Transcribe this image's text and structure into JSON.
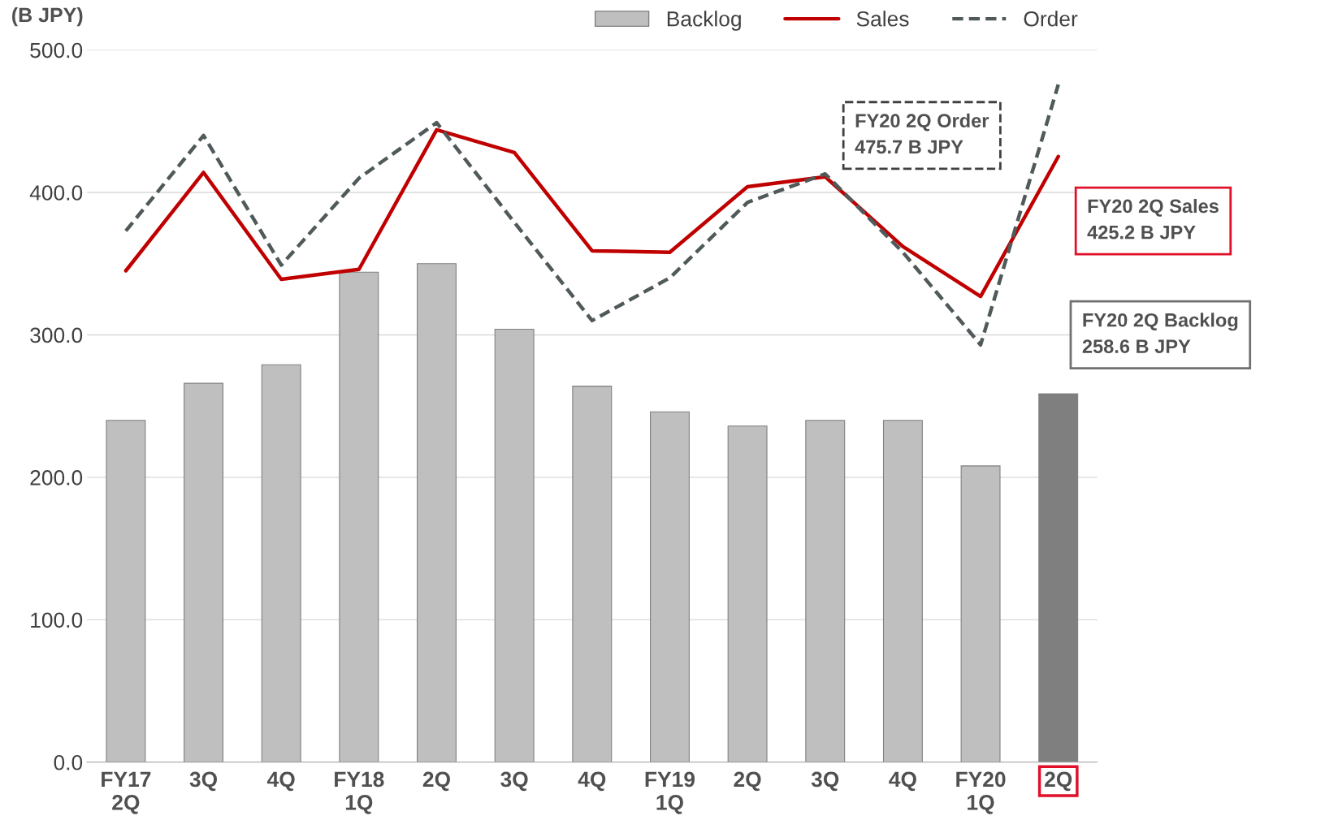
{
  "chart_data": {
    "type": "bar",
    "ylabel": "(B JPY)",
    "categories": [
      "FY17\n2Q",
      "3Q",
      "4Q",
      "FY18\n1Q",
      "2Q",
      "3Q",
      "4Q",
      "FY19\n1Q",
      "2Q",
      "3Q",
      "4Q",
      "FY20\n1Q",
      "2Q"
    ],
    "series": [
      {
        "name": "Backlog",
        "color": "#bfbfbf",
        "colors": [
          "#bfbfbf",
          "#bfbfbf",
          "#bfbfbf",
          "#bfbfbf",
          "#bfbfbf",
          "#bfbfbf",
          "#bfbfbf",
          "#bfbfbf",
          "#bfbfbf",
          "#bfbfbf",
          "#bfbfbf",
          "#bfbfbf",
          "#7f7f7f"
        ],
        "values": [
          240,
          266,
          279,
          344,
          350,
          304,
          264,
          246,
          236,
          240,
          240,
          208,
          258.6
        ]
      },
      {
        "name": "Sales",
        "type": "line",
        "color": "#c00000",
        "line_style": "solid",
        "values": [
          345,
          414,
          339,
          346,
          444,
          428,
          359,
          358,
          404,
          411,
          362,
          327,
          425.2
        ]
      },
      {
        "name": "Order",
        "type": "line",
        "color": "#505a5a",
        "line_style": "dashed",
        "values": [
          373,
          440,
          349,
          410,
          449,
          379,
          310,
          340,
          393,
          413,
          358,
          293,
          475.7
        ]
      }
    ],
    "ylim": [
      0,
      500
    ],
    "yticks": [
      {
        "value": 0,
        "label": "0.0"
      },
      {
        "value": 100,
        "label": "100.0"
      },
      {
        "value": 200,
        "label": "200.0"
      },
      {
        "value": 300,
        "label": "300.0"
      },
      {
        "value": 400,
        "label": "400.0"
      },
      {
        "value": 500,
        "label": "500.0"
      }
    ],
    "grid": "y",
    "legend": "top right",
    "marker": "none",
    "annotations": [
      "FY20 2Q Order\n475.7 B JPY",
      "FY20 2Q Sales\n425.2 B JPY",
      "FY20 2Q Backlog\n258.6 B JPY"
    ]
  }
}
